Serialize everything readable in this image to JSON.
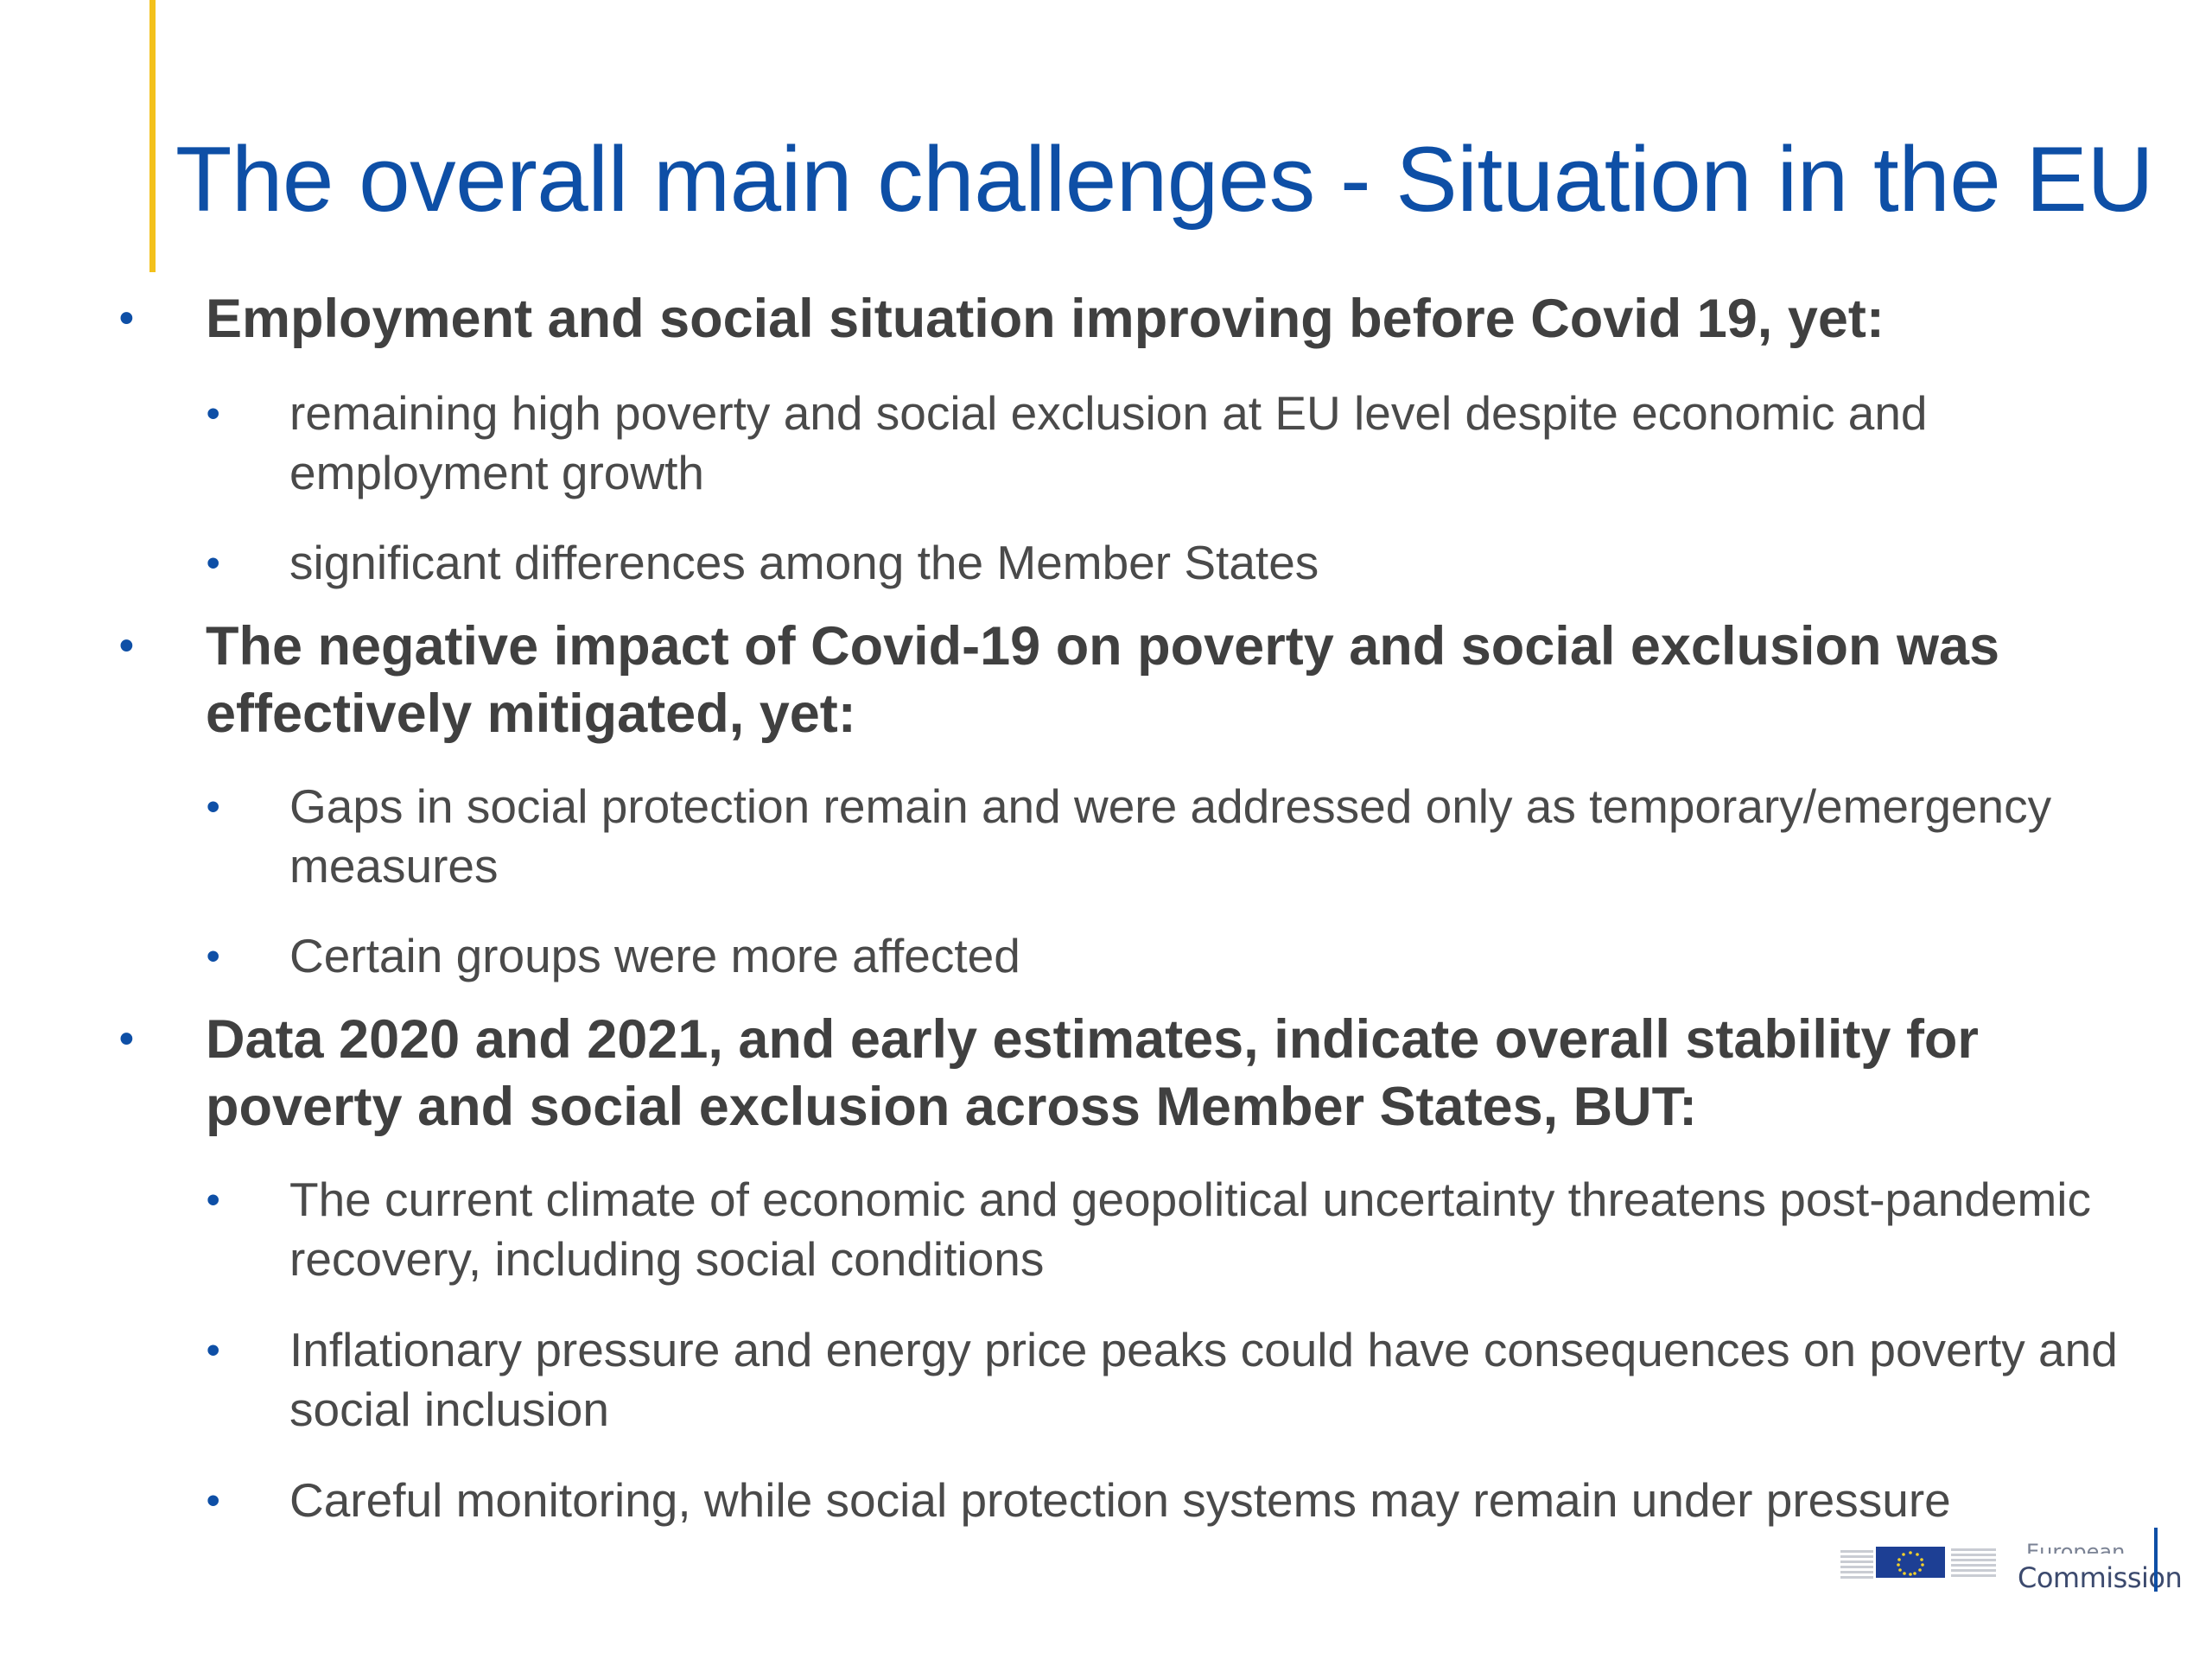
{
  "slide": {
    "title": "The overall main challenges - Situation in the EU",
    "accent_color": "#f3c11b",
    "title_color": "#0e4fa6",
    "bullet_color": "#0e4fa6"
  },
  "bullets": [
    {
      "text": "Employment and social situation improving before Covid 19, yet:",
      "children": [
        "remaining high poverty and social exclusion at EU level despite economic and employment growth",
        "significant differences among the Member States"
      ]
    },
    {
      "text": "The negative impact of Covid-19 on poverty and social exclusion was effectively mitigated, yet:",
      "children": [
        "Gaps in social protection remain and were addressed only as temporary/emergency measures",
        "Certain groups were more affected"
      ]
    },
    {
      "text": "Data 2020 and 2021, and early estimates, indicate overall stability for poverty and social exclusion across Member States, BUT:",
      "children": [
        "The current climate of economic and geopolitical uncertainty threatens post-pandemic recovery, including social conditions",
        "Inflationary pressure and energy price peaks could have consequences on poverty and social inclusion",
        "Careful monitoring, while social protection systems may remain under pressure"
      ]
    }
  ],
  "bullet_glyph": "•",
  "footer": {
    "logo_name": "European Commission",
    "logo_text_top": "European",
    "logo_text_bottom": "Commission",
    "logo_icon": "eu-flag-icon"
  }
}
